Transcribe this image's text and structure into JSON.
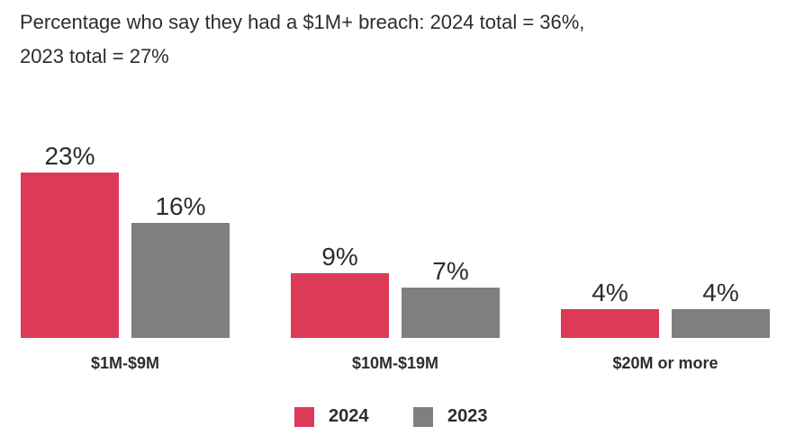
{
  "title_line1": "Percentage who say they had a $1M+ breach: 2024 total = 36%,",
  "title_line2": "2023 total = 27%",
  "colors": {
    "2024": "#dc3a57",
    "2023": "#7f7f7f"
  },
  "chart_data": {
    "type": "bar",
    "categories": [
      "$1M-$9M",
      "$10M-$19M",
      "$20M or more"
    ],
    "series": [
      {
        "name": "2024",
        "values": [
          23,
          9,
          4
        ],
        "labels": [
          "23%",
          "9%",
          "4%"
        ]
      },
      {
        "name": "2023",
        "values": [
          16,
          7,
          4
        ],
        "labels": [
          "16%",
          "7%",
          "4%"
        ]
      }
    ],
    "ylim": [
      0,
      23
    ],
    "grid": false,
    "legend": "bottom-center"
  }
}
